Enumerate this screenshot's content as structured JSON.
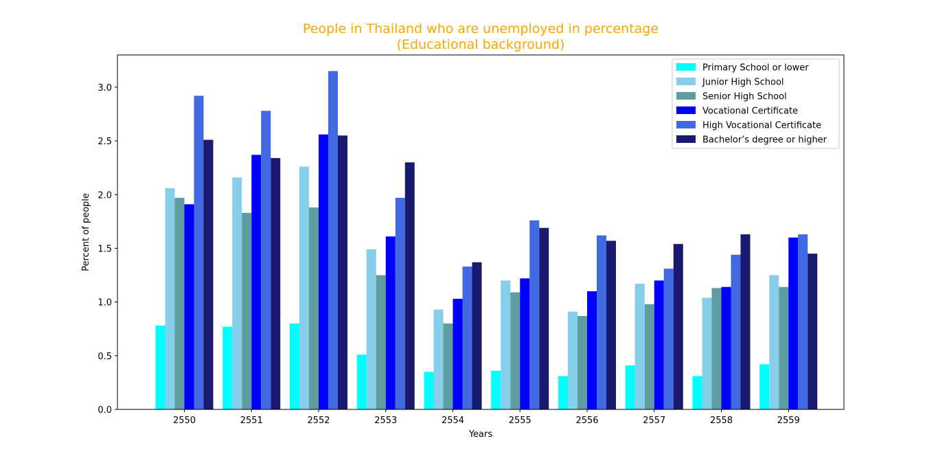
{
  "chart_data": {
    "type": "bar",
    "title": "People in Thailand who are unemployed in percentage",
    "subtitle": "(Educational background)",
    "title_color": "#FFA500",
    "xlabel": "Years",
    "ylabel": "Percent of people",
    "ylim": [
      0,
      3.3
    ],
    "yticks": [
      "0.0",
      "0.5",
      "1.0",
      "1.5",
      "2.0",
      "2.5",
      "3.0"
    ],
    "categories": [
      "2550",
      "2551",
      "2552",
      "2553",
      "2554",
      "2555",
      "2556",
      "2557",
      "2558",
      "2559"
    ],
    "legend_position": "top-right",
    "grid": false,
    "series": [
      {
        "name": "Primary School or lower",
        "color": "#00FFFF",
        "values": [
          0.78,
          0.77,
          0.8,
          0.51,
          0.35,
          0.36,
          0.31,
          0.41,
          0.31,
          0.42
        ]
      },
      {
        "name": "Junior High School",
        "color": "#87CEEB",
        "values": [
          2.06,
          2.16,
          2.26,
          1.49,
          0.93,
          1.2,
          0.91,
          1.17,
          1.04,
          1.25
        ]
      },
      {
        "name": "Senior High School",
        "color": "#5F9EA0",
        "values": [
          1.97,
          1.83,
          1.88,
          1.25,
          0.8,
          1.09,
          0.87,
          0.98,
          1.13,
          1.14
        ]
      },
      {
        "name": "Vocational Certificate",
        "color": "#0000FF",
        "values": [
          1.91,
          2.37,
          2.56,
          1.61,
          1.03,
          1.22,
          1.1,
          1.2,
          1.14,
          1.6
        ]
      },
      {
        "name": "High Vocational Certificate",
        "color": "#4169E1",
        "values": [
          2.92,
          2.78,
          3.15,
          1.97,
          1.33,
          1.76,
          1.62,
          1.31,
          1.44,
          1.63
        ]
      },
      {
        "name": "Bachelor’s degree or higher",
        "color": "#191970",
        "values": [
          2.51,
          2.34,
          2.55,
          2.3,
          1.37,
          1.69,
          1.57,
          1.54,
          1.63,
          1.45
        ]
      }
    ]
  }
}
